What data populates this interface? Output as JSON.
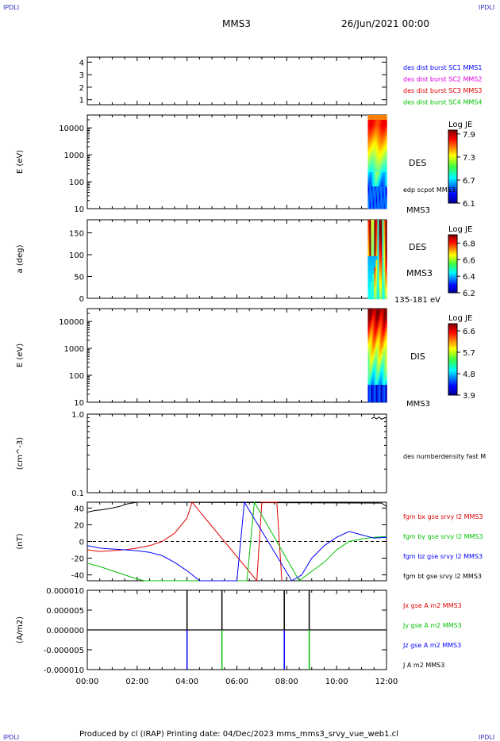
{
  "header": {
    "corner_tl": "IPDLI",
    "corner_tr": "IPDLI",
    "corner_bl": "IPDLI",
    "corner_br": "IPDLI",
    "spacecraft": "MMS3",
    "date": "26/Jun/2021 00:00"
  },
  "footer": {
    "text": "Produced by cl (IRAP)   Printing date: 04/Dec/2023   mms_mms3_srvy_vue_web1.cl"
  },
  "colors": {
    "blue": "#0000ff",
    "magenta": "#e000e0",
    "red": "#e00000",
    "green": "#00c000",
    "black": "#000000"
  },
  "chart_data": [
    {
      "type": "line",
      "panel": "burst-availability",
      "yticks": [
        "1",
        "2",
        "3",
        "4"
      ],
      "ylim": [
        0.6,
        4.4
      ],
      "legend": [
        {
          "text": "des dist burst SC1 MMS1",
          "color": "#0000ff"
        },
        {
          "text": "des dist burst SC2 MMS2",
          "color": "#e000e0"
        },
        {
          "text": "des dist burst SC3 MMS3",
          "color": "#e00000"
        },
        {
          "text": "des dist burst SC4 MMS4",
          "color": "#00c000"
        }
      ]
    },
    {
      "type": "heatmap",
      "panel": "des-energy-spectrogram",
      "ylabel": "E (eV)",
      "yscale": "log",
      "ylim": [
        10,
        30000
      ],
      "yticks": [
        "10",
        "100",
        "1000",
        "10000"
      ],
      "colorbar": {
        "title": "Log JE",
        "ticks": [
          "7.9",
          "7.3",
          "6.7",
          "6.1"
        ],
        "range": [
          6.1,
          8.0
        ]
      },
      "labels": [
        "DES",
        "edp scpot MMS3",
        "MMS3"
      ],
      "data_time_range": [
        "11:15",
        "12:00"
      ]
    },
    {
      "type": "heatmap",
      "panel": "des-pitch-angle",
      "ylabel": "a (deg)",
      "ylim": [
        0,
        180
      ],
      "yticks": [
        "0",
        "50",
        "100",
        "150"
      ],
      "colorbar": {
        "title": "Log JE",
        "ticks": [
          "6.8",
          "6.6",
          "6.4",
          "6.2"
        ],
        "range": [
          6.2,
          6.9
        ]
      },
      "labels": [
        "DES",
        "MMS3",
        "135-181 eV"
      ],
      "data_time_range": [
        "11:15",
        "12:00"
      ]
    },
    {
      "type": "heatmap",
      "panel": "dis-energy-spectrogram",
      "ylabel": "E (eV)",
      "yscale": "log",
      "ylim": [
        10,
        30000
      ],
      "yticks": [
        "10",
        "100",
        "1000",
        "10000"
      ],
      "colorbar": {
        "title": "Log JE",
        "ticks": [
          "6.6",
          "5.7",
          "4.8",
          "3.9"
        ],
        "range": [
          3.9,
          6.9
        ]
      },
      "labels": [
        "DIS",
        "MMS3"
      ],
      "data_time_range": [
        "11:15",
        "12:00"
      ]
    },
    {
      "type": "line",
      "panel": "density",
      "ylabel": "(cm^-3)",
      "yscale": "log",
      "ylim": [
        0.1,
        1.0
      ],
      "yticks": [
        "0.1",
        "1.0"
      ],
      "legend": [
        {
          "text": "des numberdensity fast M",
          "color": "#000000"
        }
      ],
      "series": [
        {
          "name": "des numberdensity fast M",
          "color": "#000000",
          "x": [
            11.4,
            11.5,
            11.6,
            11.7,
            11.8,
            11.9,
            12.0
          ],
          "y": [
            0.88,
            0.91,
            0.87,
            0.92,
            0.86,
            0.89,
            0.9
          ]
        }
      ]
    },
    {
      "type": "line",
      "panel": "magnetic-field",
      "ylabel": "(nT)",
      "ylim": [
        -47,
        47
      ],
      "yticks": [
        "-40",
        "-20",
        "0",
        "20",
        "40"
      ],
      "legend": [
        {
          "text": "fgm bx gse srvy l2 MMS3",
          "color": "#e00000"
        },
        {
          "text": "fgm by gse srvy l2 MMS3",
          "color": "#00c000"
        },
        {
          "text": "fgm bz gse srvy l2 MMS3",
          "color": "#0000ff"
        },
        {
          "text": "fgm bt gse srvy l2 MMS3",
          "color": "#000000"
        }
      ],
      "series": [
        {
          "name": "fgm bt gse srvy l2 MMS3",
          "color": "#000000",
          "x": [
            0.0,
            0.3,
            0.6,
            1.0,
            1.3,
            1.6,
            2.0,
            2.2,
            11.8,
            12.0
          ],
          "y": [
            35,
            37,
            38,
            40,
            42,
            45,
            47,
            48,
            46,
            42
          ]
        },
        {
          "name": "fgm bx gse srvy l2 MMS3",
          "color": "#e00000",
          "x": [
            0.0,
            0.5,
            1.0,
            1.5,
            2.0,
            2.5,
            3.0,
            3.5,
            4.0,
            4.2,
            6.8,
            7.0,
            7.6,
            7.8
          ],
          "y": [
            -10,
            -12,
            -11,
            -10,
            -8,
            -5,
            0,
            10,
            28,
            47,
            -47,
            47,
            47,
            -47
          ]
        },
        {
          "name": "fgm by gse srvy l2 MMS3",
          "color": "#00c000",
          "x": [
            0.0,
            0.5,
            1.0,
            1.5,
            2.0,
            2.3,
            6.4,
            6.7,
            8.5,
            8.9,
            9.5,
            10.0,
            10.5,
            11.0,
            11.5,
            12.0
          ],
          "y": [
            -26,
            -30,
            -35,
            -40,
            -45,
            -48,
            -47,
            47,
            -47,
            -38,
            -25,
            -10,
            0,
            3,
            5,
            6
          ]
        },
        {
          "name": "fgm bz gse srvy l2 MMS3",
          "color": "#0000ff",
          "x": [
            0.0,
            0.5,
            1.0,
            1.5,
            2.0,
            2.5,
            3.0,
            3.5,
            4.0,
            4.5,
            6.0,
            6.3,
            8.2,
            8.6,
            9.0,
            9.5,
            10.0,
            10.5,
            11.0,
            11.5,
            12.0
          ],
          "y": [
            -5,
            -8,
            -9,
            -10,
            -11,
            -13,
            -17,
            -25,
            -35,
            -48,
            -48,
            47,
            -48,
            -40,
            -20,
            -5,
            5,
            12,
            8,
            4,
            5
          ]
        }
      ]
    },
    {
      "type": "line",
      "panel": "current-density",
      "ylabel": "(A/m2)",
      "ylim": [
        -1e-05,
        1e-05
      ],
      "yticks": [
        "-0.000010",
        "-0.000005",
        "0.000000",
        "0.000005",
        "0.000010"
      ],
      "legend": [
        {
          "text": "Jx gse A m2 MMS3",
          "color": "#e00000"
        },
        {
          "text": "Jy gse A m2 MMS3",
          "color": "#00c000"
        },
        {
          "text": "Jz gse A m2 MMS3",
          "color": "#0000ff"
        },
        {
          "text": "J A m2 MMS3",
          "color": "#000000"
        }
      ],
      "xlabel": "",
      "xticks": [
        "00:00",
        "02:00",
        "04:00",
        "06:00",
        "08:00",
        "10:00",
        "12:00"
      ],
      "xlim": [
        0,
        12
      ],
      "spikes": [
        {
          "x": 4.0,
          "up": 1e-05,
          "down": -1e-05
        },
        {
          "x": 5.4,
          "up": 1e-05,
          "down": -1e-05
        },
        {
          "x": 7.9,
          "up": 1e-05,
          "down": -1e-05
        },
        {
          "x": 8.9,
          "up": 1e-05,
          "down": -1e-05
        }
      ]
    }
  ]
}
